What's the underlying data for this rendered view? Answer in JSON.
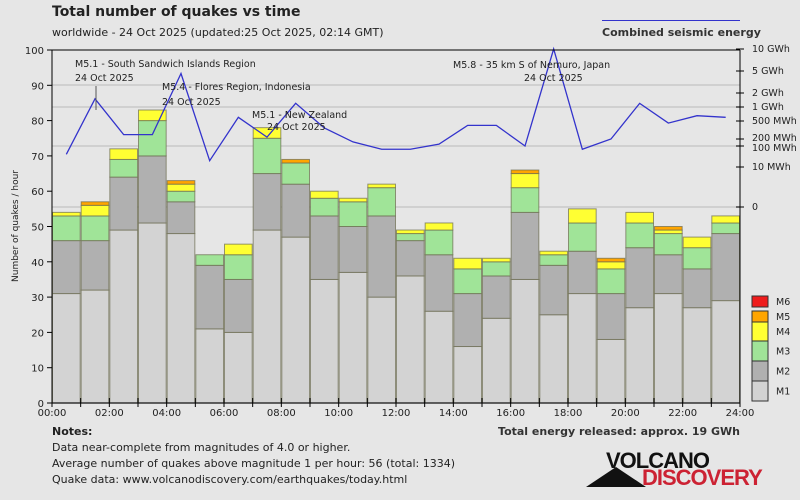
{
  "header": {
    "title": "Total number of quakes vs time",
    "subtitle": "worldwide - 24 Oct 2025 (updated:25 Oct 2025, 02:14 GMT)",
    "energy_legend": "Combined seismic energy"
  },
  "notes": {
    "heading": "Notes:",
    "lines": [
      "Data near-complete from magnitudes of 4.0 or higher.",
      "Average number of quakes above magnitude 1 per hour: 56 (total: 1334)",
      "Quake data: www.volcanodiscovery.com/earthquakes/today.html"
    ]
  },
  "total_energy": "Total energy released: approx. 19 GWh",
  "logo": {
    "line1": "VOLCANO",
    "line2": "DISCOVERY"
  },
  "colors": {
    "M1": "#d3d3d3",
    "M2": "#b0b0b0",
    "M3": "#a0e498",
    "M4": "#ffff33",
    "M5": "#ffa500",
    "M6": "#ee1c1c",
    "energy_line": "#3333cc",
    "background": "#e6e6e6"
  },
  "chart_data": {
    "type": "bar",
    "stacked": true,
    "title": "Total number of quakes vs time",
    "ylabel": "Number of quakes / hour",
    "xlabel": "",
    "ylim": [
      0,
      100
    ],
    "yticks": [
      0,
      10,
      20,
      30,
      40,
      50,
      60,
      70,
      80,
      90,
      100
    ],
    "xticks": [
      "00:00",
      "02:00",
      "04:00",
      "06:00",
      "08:00",
      "10:00",
      "12:00",
      "14:00",
      "16:00",
      "18:00",
      "20:00",
      "22:00",
      "24:00"
    ],
    "categories": [
      "00",
      "01",
      "02",
      "03",
      "04",
      "05",
      "06",
      "07",
      "08",
      "09",
      "10",
      "11",
      "12",
      "13",
      "14",
      "15",
      "16",
      "17",
      "18",
      "19",
      "20",
      "21",
      "22",
      "23"
    ],
    "legend_position": "bottom-right",
    "series": [
      {
        "name": "M1",
        "values": [
          31,
          32,
          49,
          51,
          48,
          21,
          20,
          49,
          47,
          35,
          37,
          30,
          36,
          26,
          16,
          24,
          35,
          25,
          31,
          18,
          27,
          31,
          27,
          29
        ]
      },
      {
        "name": "M2",
        "values": [
          15,
          14,
          15,
          19,
          9,
          18,
          15,
          16,
          15,
          18,
          13,
          23,
          10,
          16,
          15,
          12,
          19,
          14,
          12,
          13,
          17,
          11,
          11,
          19
        ]
      },
      {
        "name": "M3",
        "values": [
          7,
          7,
          5,
          10,
          3,
          3,
          7,
          10,
          6,
          5,
          7,
          8,
          2,
          7,
          7,
          4,
          7,
          3,
          8,
          7,
          7,
          6,
          6,
          3
        ]
      },
      {
        "name": "M4",
        "values": [
          1,
          3,
          3,
          3,
          2,
          0,
          3,
          3,
          0,
          2,
          1,
          1,
          1,
          2,
          3,
          1,
          4,
          1,
          4,
          2,
          3,
          1,
          3,
          2
        ]
      },
      {
        "name": "M5",
        "values": [
          0,
          1,
          0,
          0,
          1,
          0,
          0,
          0,
          1,
          0,
          0,
          0,
          0,
          0,
          0,
          0,
          1,
          0,
          0,
          1,
          0,
          1,
          0,
          0
        ]
      },
      {
        "name": "M6",
        "values": [
          0,
          0,
          0,
          0,
          0,
          0,
          0,
          0,
          0,
          0,
          0,
          0,
          0,
          0,
          0,
          0,
          0,
          0,
          0,
          0,
          0,
          0,
          0,
          0
        ]
      }
    ],
    "energy_axis": {
      "label": "Combined seismic energy",
      "ticks": [
        "0",
        "10 MWh",
        "100 MWh",
        "200 MWh",
        "500 MWh",
        "1 GWh",
        "2 GWh",
        "5 GWh",
        "10 GWh"
      ],
      "tick_values_mwh": [
        0,
        10,
        100,
        200,
        500,
        1000,
        2000,
        5000,
        10000
      ]
    },
    "energy_series_mwh": [
      40,
      1500,
      250,
      250,
      4500,
      20,
      600,
      220,
      1200,
      350,
      150,
      70,
      70,
      120,
      400,
      400,
      100,
      10000,
      70,
      200,
      1200,
      450,
      650,
      600,
      400
    ],
    "annotations": [
      {
        "text": "M5.1 - South Sandwich Islands Region",
        "date": "24 Oct 2025",
        "hour": 1.5
      },
      {
        "text": "M5.4 - Flores Region, Indonesia",
        "date": "24 Oct 2025",
        "hour": 4.5
      },
      {
        "text": "M5.1 - New Zealand",
        "date": "24 Oct 2025",
        "hour": 8.0
      },
      {
        "text": "M5.8 - 35 km S of Nemuro, Japan",
        "date": "24 Oct 2025",
        "hour": 16.5
      }
    ]
  }
}
